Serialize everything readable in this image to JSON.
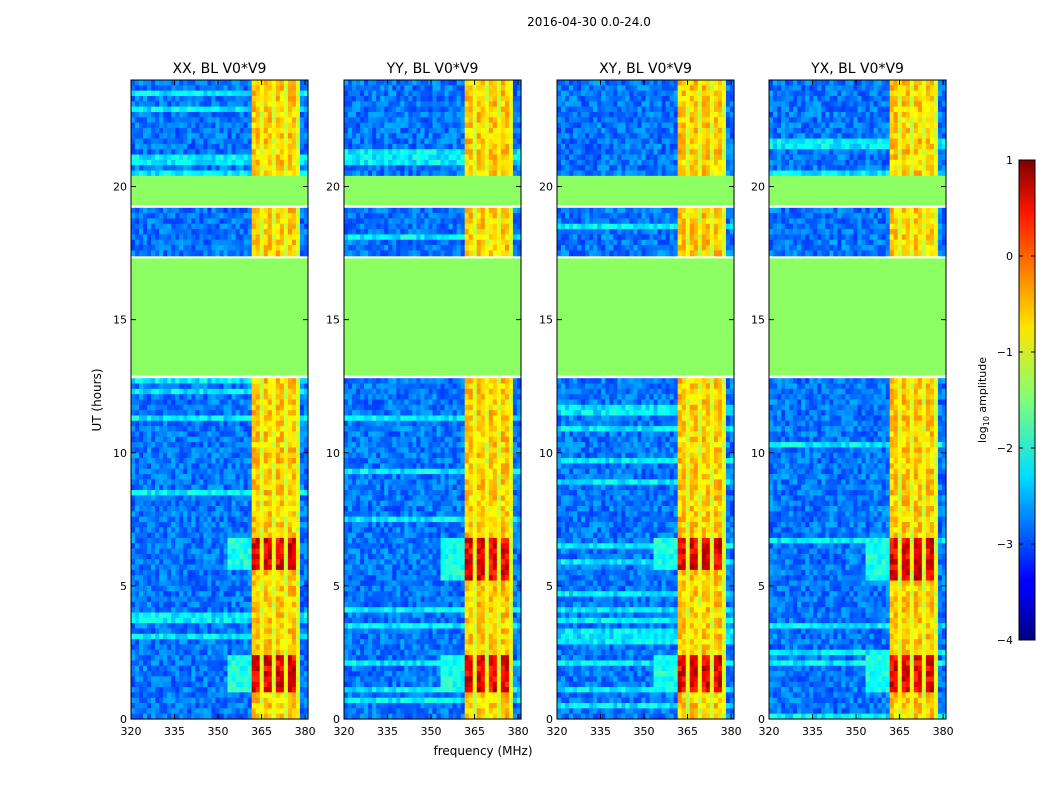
{
  "suptitle": "2016-04-30 0.0-24.0",
  "colors": {
    "flagged": "#8cff63",
    "background_mid": "#1e5aff",
    "colormap": "jet"
  },
  "chart_data": {
    "type": "heatmap",
    "xlabel": "frequency (MHz)",
    "ylabel": "UT (hours)",
    "xlim": [
      320,
      381
    ],
    "ylim": [
      0,
      24
    ],
    "xticks": [
      320,
      335,
      350,
      365,
      380
    ],
    "yticks": [
      0,
      5,
      10,
      15,
      20
    ],
    "panels": [
      {
        "title": "XX, BL V0*V9",
        "strong_band_mhz": [
          361,
          378
        ],
        "strong_hours": [
          [
            1.0,
            2.4
          ],
          [
            5.6,
            6.8
          ]
        ]
      },
      {
        "title": "YY, BL V0*V9",
        "strong_band_mhz": [
          361,
          378
        ],
        "strong_hours": [
          [
            1.0,
            2.4
          ],
          [
            5.2,
            6.8
          ]
        ]
      },
      {
        "title": "XY, BL V0*V9",
        "strong_band_mhz": [
          361,
          378
        ],
        "strong_hours": [
          [
            1.0,
            2.4
          ],
          [
            5.6,
            6.8
          ]
        ]
      },
      {
        "title": "YX, BL V0*V9",
        "strong_band_mhz": [
          361,
          378
        ],
        "strong_hours": [
          [
            1.0,
            2.4
          ],
          [
            5.2,
            6.8
          ]
        ]
      }
    ],
    "flagged_hours": [
      [
        12.9,
        17.3
      ],
      [
        19.3,
        20.4
      ]
    ],
    "colorbar": {
      "label": "log10 amplitude",
      "label_base": "log",
      "label_sub": "10",
      "label_rest": " amplitude",
      "range": [
        -4,
        1
      ],
      "ticks": [
        "1",
        "0",
        "−1",
        "−2",
        "−3",
        "−4"
      ]
    }
  }
}
